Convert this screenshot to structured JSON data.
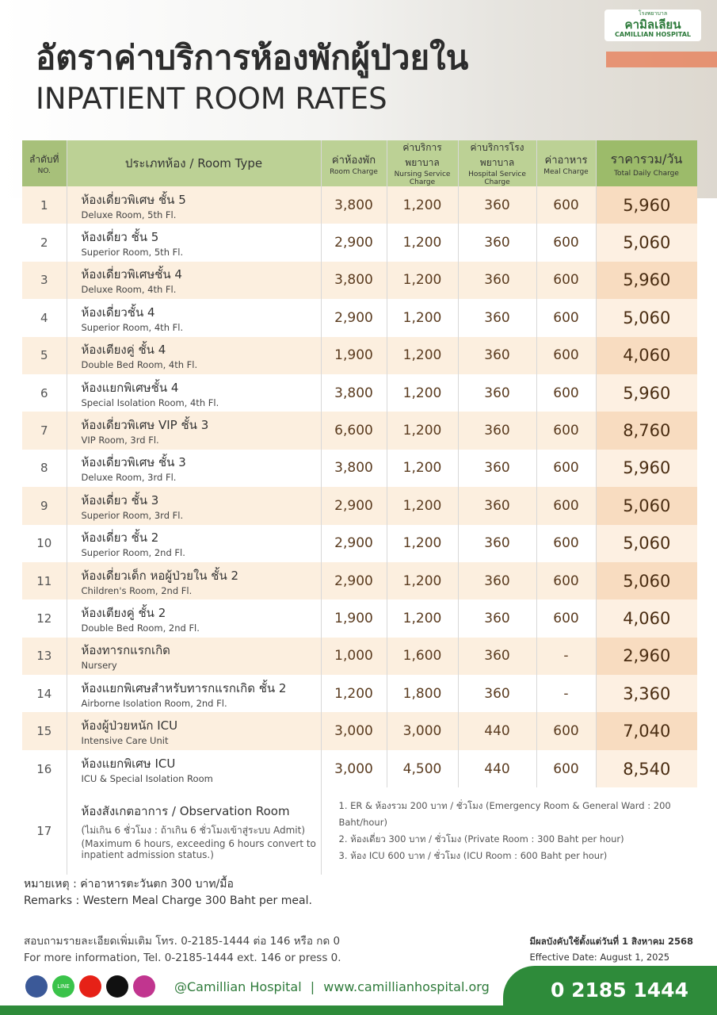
{
  "header": {
    "title_th": "อัตราค่าบริการห้องพักผู้ป่วยใน",
    "title_en": "INPATIENT ROOM RATES",
    "logo_small": "โรงพยาบาล",
    "logo_th": "คามิลเลียน",
    "logo_en": "CAMILLIAN HOSPITAL"
  },
  "table": {
    "columns": [
      {
        "th": "ลำดับที่",
        "en": "NO."
      },
      {
        "th": "ประเภทห้อง / Room Type"
      },
      {
        "th": "ค่าห้องพัก",
        "en": "Room Charge"
      },
      {
        "th": "ค่าบริการพยาบาล",
        "en": "Nursing Service Charge"
      },
      {
        "th": "ค่าบริการโรงพยาบาล",
        "en": "Hospital Service Charge"
      },
      {
        "th": "ค่าอาหาร",
        "en": "Meal Charge"
      },
      {
        "th": "ราคารวม/วัน",
        "en": "Total Daily Charge"
      }
    ],
    "rows": [
      [
        "1",
        "ห้องเดี่ยวพิเศษ ชั้น 5",
        "Deluxe Room, 5th Fl.",
        "3,800",
        "1,200",
        "360",
        "600",
        "5,960"
      ],
      [
        "2",
        "ห้องเดี่ยว ชั้น 5",
        "Superior Room, 5th Fl.",
        "2,900",
        "1,200",
        "360",
        "600",
        "5,060"
      ],
      [
        "3",
        "ห้องเดี่ยวพิเศษชั้น 4",
        "Deluxe Room, 4th Fl.",
        "3,800",
        "1,200",
        "360",
        "600",
        "5,960"
      ],
      [
        "4",
        "ห้องเดี่ยวชั้น 4",
        "Superior Room, 4th Fl.",
        "2,900",
        "1,200",
        "360",
        "600",
        "5,060"
      ],
      [
        "5",
        "ห้องเตียงคู่ ชั้น 4",
        "Double Bed Room, 4th Fl.",
        "1,900",
        "1,200",
        "360",
        "600",
        "4,060"
      ],
      [
        "6",
        "ห้องแยกพิเศษชั้น 4",
        "Special Isolation Room, 4th Fl.",
        "3,800",
        "1,200",
        "360",
        "600",
        "5,960"
      ],
      [
        "7",
        "ห้องเดี่ยวพิเศษ VIP  ชั้น 3",
        "VIP Room, 3rd Fl.",
        "6,600",
        "1,200",
        "360",
        "600",
        "8,760"
      ],
      [
        "8",
        "ห้องเดี่ยวพิเศษ ชั้น 3",
        "Deluxe Room, 3rd Fl.",
        "3,800",
        "1,200",
        "360",
        "600",
        "5,960"
      ],
      [
        "9",
        "ห้องเดี่ยว ชั้น 3",
        "Superior Room, 3rd Fl.",
        "2,900",
        "1,200",
        "360",
        "600",
        "5,060"
      ],
      [
        "10",
        "ห้องเดี่ยว ชั้น 2",
        "Superior Room, 2nd Fl.",
        "2,900",
        "1,200",
        "360",
        "600",
        "5,060"
      ],
      [
        "11",
        "ห้องเดี่ยวเด็ก หอผู้ป่วยใน ชั้น 2",
        "Children's Room, 2nd Fl.",
        "2,900",
        "1,200",
        "360",
        "600",
        "5,060"
      ],
      [
        "12",
        "ห้องเตียงคู่ ชั้น 2",
        "Double Bed Room, 2nd Fl.",
        "1,900",
        "1,200",
        "360",
        "600",
        "4,060"
      ],
      [
        "13",
        "ห้องทารกแรกเกิด",
        "Nursery",
        "1,000",
        "1,600",
        "360",
        "-",
        "2,960"
      ],
      [
        "14",
        "ห้องแยกพิเศษสำหรับทารกแรกเกิด ชั้น 2",
        "Airborne Isolation Room, 2nd Fl.",
        "1,200",
        "1,800",
        "360",
        "-",
        "3,360"
      ],
      [
        "15",
        "ห้องผู้ป่วยหนัก ICU",
        "Intensive Care Unit",
        "3,000",
        "3,000",
        "440",
        "600",
        "7,040"
      ],
      [
        "16",
        "ห้องแยกพิเศษ ICU",
        "ICU & Special Isolation Room",
        "3,000",
        "4,500",
        "440",
        "600",
        "8,540"
      ]
    ],
    "observation": {
      "no": "17",
      "title": "ห้องสังเกตอาการ / Observation Room",
      "note_th": "(ไม่เกิน 6 ชั่วโมง : ถ้าเกิน 6 ชั่วโมงเข้าสู่ระบบ Admit)",
      "note_en": "(Maximum 6 hours, exceeding 6 hours convert to inpatient admission status.)",
      "rates": [
        "1. ER & ห้องรวม 200 บาท / ชั่วโมง (Emergency Room & General Ward : 200 Baht/hour)",
        "2. ห้องเดี่ยว 300 บาท / ชั่วโมง  (Private Room : 300 Baht per hour)",
        "3. ห้อง ICU 600 บาท / ชั่วโมง (ICU Room : 600 Baht per hour)"
      ]
    }
  },
  "remarks": {
    "th": "หมายเหตุ : ค่าอาหารตะวันตก 300 บาท/มื้อ",
    "en": "Remarks : Western Meal Charge  300 Baht per meal."
  },
  "contact": {
    "th": "สอบถามรายละเอียดเพิ่มเติม โทร. 0-2185-1444 ต่อ 146 หรือ กด 0",
    "en": "For more information, Tel. 0-2185-1444 ext. 146 or press 0."
  },
  "effective": {
    "th": "มีผลบังคับใช้ตั้งแต่วันที่ 1 สิงหาคม 2568",
    "en": "Effective Date: August 1, 2025"
  },
  "footer": {
    "line_icon": "LINE",
    "social": "@Camillian Hospital",
    "separator": "|",
    "website": "www.camillianhospital.org",
    "phone": "0 2185 1444"
  }
}
